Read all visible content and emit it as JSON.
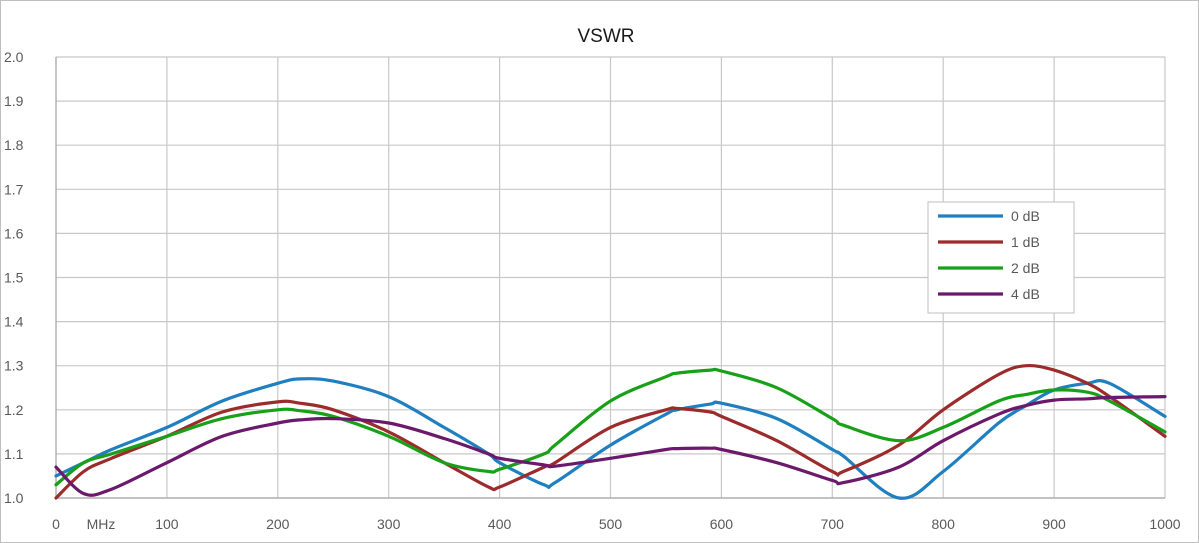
{
  "chart_data": {
    "type": "line",
    "title": "VSWR",
    "xlabel": "",
    "ylabel": "",
    "x_unit_label": "MHz",
    "xlim": [
      0,
      1000
    ],
    "ylim": [
      1.0,
      2.0
    ],
    "x_ticks": [
      "0",
      "100",
      "200",
      "300",
      "400",
      "500",
      "600",
      "700",
      "800",
      "900",
      "1000"
    ],
    "y_ticks": [
      "1.0",
      "1.1",
      "1.2",
      "1.3",
      "1.4",
      "1.5",
      "1.6",
      "1.7",
      "1.8",
      "1.9",
      "2.0"
    ],
    "grid": true,
    "legend_position": "right",
    "x": [
      0,
      25,
      50,
      100,
      150,
      200,
      220,
      250,
      300,
      350,
      390,
      400,
      440,
      450,
      500,
      550,
      560,
      590,
      600,
      650,
      700,
      710,
      760,
      800,
      850,
      875,
      900,
      930,
      950,
      1000
    ],
    "series": [
      {
        "name": "0 dB",
        "color": "#1f7fc0",
        "values": [
          1.05,
          1.08,
          1.11,
          1.16,
          1.22,
          1.26,
          1.27,
          1.265,
          1.23,
          1.16,
          1.1,
          1.08,
          1.03,
          1.035,
          1.12,
          1.19,
          1.2,
          1.213,
          1.215,
          1.18,
          1.11,
          1.095,
          1.0,
          1.06,
          1.17,
          1.21,
          1.245,
          1.26,
          1.26,
          1.185
        ]
      },
      {
        "name": "1 dB",
        "color": "#9c2b2b",
        "values": [
          1.0,
          1.06,
          1.09,
          1.14,
          1.195,
          1.218,
          1.215,
          1.2,
          1.15,
          1.08,
          1.025,
          1.025,
          1.07,
          1.08,
          1.16,
          1.2,
          1.203,
          1.195,
          1.185,
          1.13,
          1.06,
          1.06,
          1.12,
          1.2,
          1.28,
          1.3,
          1.29,
          1.26,
          1.23,
          1.14
        ]
      },
      {
        "name": "2 dB",
        "color": "#19a019",
        "values": [
          1.03,
          1.08,
          1.1,
          1.14,
          1.18,
          1.2,
          1.198,
          1.185,
          1.14,
          1.08,
          1.06,
          1.065,
          1.1,
          1.12,
          1.22,
          1.275,
          1.283,
          1.29,
          1.288,
          1.25,
          1.18,
          1.165,
          1.13,
          1.16,
          1.22,
          1.235,
          1.245,
          1.24,
          1.22,
          1.15
        ]
      },
      {
        "name": "4 dB",
        "color": "#6b1a6b",
        "values": [
          1.07,
          1.01,
          1.02,
          1.08,
          1.14,
          1.17,
          1.177,
          1.18,
          1.17,
          1.135,
          1.1,
          1.09,
          1.075,
          1.072,
          1.09,
          1.11,
          1.112,
          1.113,
          1.11,
          1.08,
          1.04,
          1.035,
          1.07,
          1.13,
          1.19,
          1.21,
          1.222,
          1.225,
          1.228,
          1.23
        ]
      }
    ]
  }
}
